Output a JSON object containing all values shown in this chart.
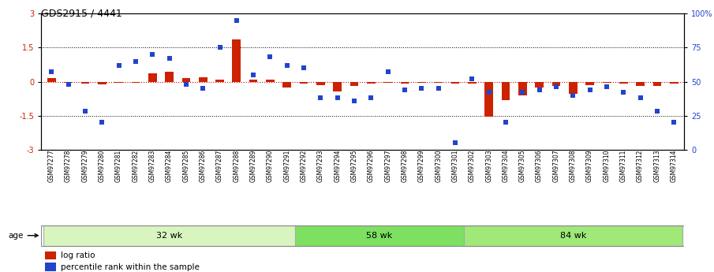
{
  "title": "GDS2915 / 4441",
  "samples": [
    "GSM97277",
    "GSM97278",
    "GSM97279",
    "GSM97280",
    "GSM97281",
    "GSM97282",
    "GSM97283",
    "GSM97284",
    "GSM97285",
    "GSM97286",
    "GSM97287",
    "GSM97288",
    "GSM97289",
    "GSM97290",
    "GSM97291",
    "GSM97292",
    "GSM97293",
    "GSM97294",
    "GSM97295",
    "GSM97296",
    "GSM97297",
    "GSM97298",
    "GSM97299",
    "GSM97300",
    "GSM97301",
    "GSM97302",
    "GSM97303",
    "GSM97304",
    "GSM97305",
    "GSM97306",
    "GSM97307",
    "GSM97308",
    "GSM97309",
    "GSM97310",
    "GSM97311",
    "GSM97312",
    "GSM97313",
    "GSM97314"
  ],
  "log_ratio": [
    0.15,
    -0.05,
    -0.08,
    -0.12,
    -0.05,
    -0.04,
    0.35,
    0.42,
    0.15,
    0.18,
    0.1,
    1.85,
    0.1,
    0.08,
    -0.25,
    -0.1,
    -0.15,
    -0.45,
    -0.18,
    -0.1,
    -0.05,
    -0.08,
    -0.05,
    -0.05,
    -0.08,
    -0.1,
    -1.55,
    -0.8,
    -0.6,
    -0.25,
    -0.2,
    -0.55,
    -0.15,
    -0.05,
    -0.1,
    -0.18,
    -0.2,
    -0.08
  ],
  "percentile": [
    57,
    48,
    28,
    20,
    62,
    65,
    70,
    67,
    48,
    45,
    75,
    95,
    55,
    68,
    62,
    60,
    38,
    38,
    36,
    38,
    57,
    44,
    45,
    45,
    5,
    52,
    42,
    20,
    42,
    44,
    46,
    40,
    44,
    46,
    42,
    38,
    28,
    20
  ],
  "groups": [
    {
      "label": "32 wk",
      "start": 0,
      "end": 15
    },
    {
      "label": "58 wk",
      "start": 15,
      "end": 25
    },
    {
      "label": "84 wk",
      "start": 25,
      "end": 38
    }
  ],
  "group_colors": [
    "#d8f5c0",
    "#7de060",
    "#a0e878"
  ],
  "ylim": [
    -3,
    3
  ],
  "bar_color": "#cc2200",
  "dot_color": "#2244cc",
  "zero_line_color": "#cc0000",
  "background_color": "#ffffff",
  "age_label": "age",
  "legend_ratio_label": "log ratio",
  "legend_pct_label": "percentile rank within the sample"
}
